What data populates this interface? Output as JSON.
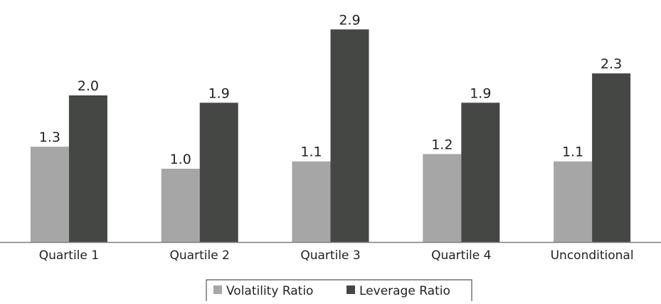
{
  "chart_data": {
    "type": "bar",
    "title": "",
    "xlabel": "",
    "ylabel": "",
    "ylim": [
      0,
      3.0
    ],
    "grid": false,
    "legend_position": "bottom",
    "categories": [
      "Quartile 1",
      "Quartile 2",
      "Quartile 3",
      "Quartile 4",
      "Unconditional"
    ],
    "series": [
      {
        "name": "Volatility Ratio",
        "values": [
          1.3,
          1.0,
          1.1,
          1.2,
          1.1
        ],
        "labels": [
          "1.3",
          "1.0",
          "1.1",
          "1.2",
          "1.1"
        ],
        "color": "#a6a6a6"
      },
      {
        "name": "Leverage Ratio",
        "values": [
          2.0,
          1.9,
          2.9,
          1.9,
          2.3
        ],
        "labels": [
          "2.0",
          "1.9",
          "2.9",
          "1.9",
          "2.3"
        ],
        "color": "#454745"
      }
    ],
    "axis_color": "#7f7f7f"
  }
}
